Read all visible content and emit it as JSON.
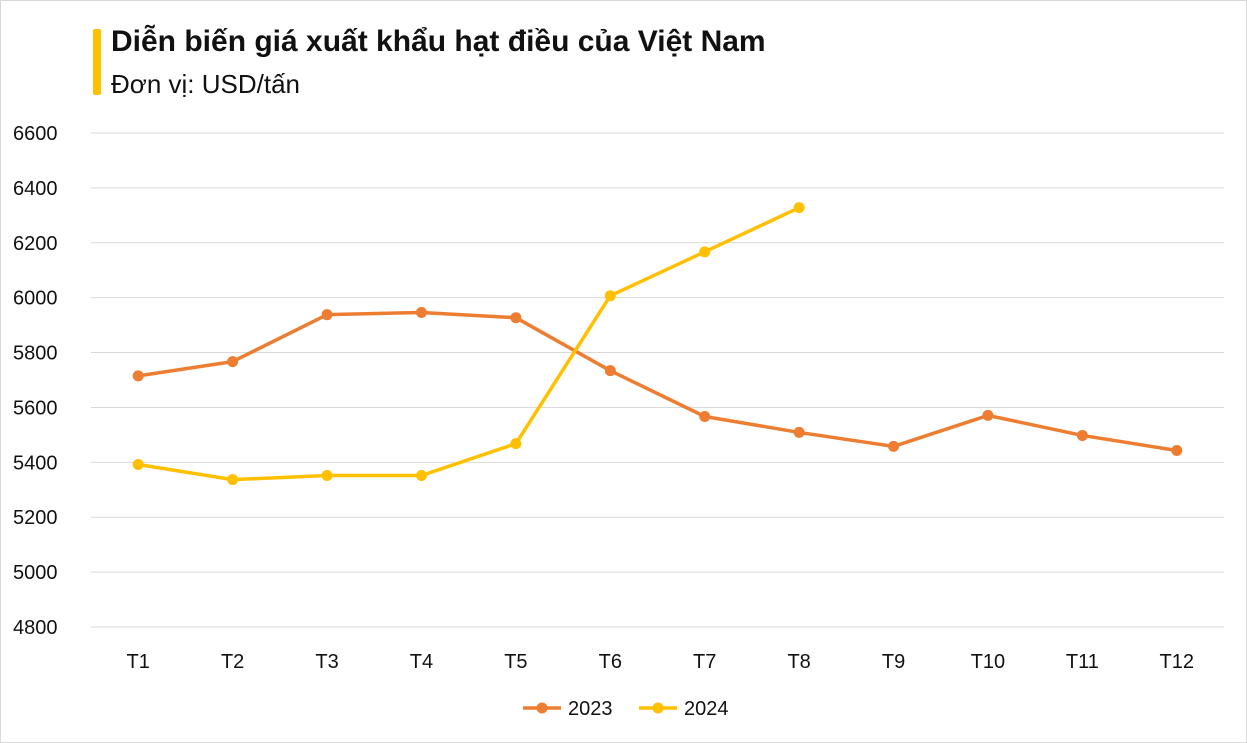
{
  "chart_data": {
    "type": "line",
    "title": "Diễn biến giá xuất khẩu hạt điều của Việt Nam",
    "subtitle": "Đơn vị: USD/tấn",
    "xlabel": "",
    "ylabel": "",
    "categories": [
      "T1",
      "T2",
      "T3",
      "T4",
      "T5",
      "T6",
      "T7",
      "T8",
      "T9",
      "T10",
      "T11",
      "T12"
    ],
    "ylim": [
      4800,
      6600
    ],
    "yticks": [
      4800,
      5000,
      5200,
      5400,
      5600,
      5800,
      6000,
      6200,
      6400,
      6600
    ],
    "grid": true,
    "legend": "bottom",
    "series": [
      {
        "name": "2023",
        "color": "#ed7d31",
        "values": [
          5715,
          5767,
          5938,
          5946,
          5927,
          5734,
          5567,
          5509,
          5458,
          5571,
          5498,
          5443
        ]
      },
      {
        "name": "2024",
        "color": "#ffc000",
        "values": [
          5392,
          5337,
          5352,
          5352,
          5468,
          6007,
          6167,
          6328,
          null,
          null,
          null,
          null
        ]
      }
    ]
  }
}
